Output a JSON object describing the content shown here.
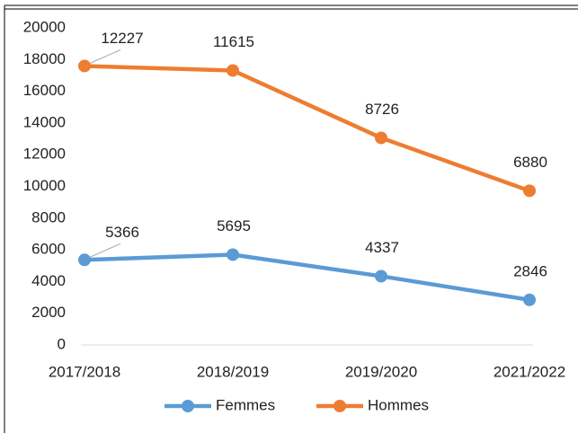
{
  "chart_data": {
    "type": "line",
    "stacked": true,
    "categories": [
      "2017/2018",
      "2018/2019",
      "2019/2020",
      "2021/2022"
    ],
    "series": [
      {
        "name": "Femmes",
        "color": "#5b9bd5",
        "values": [
          5366,
          5695,
          4337,
          2846
        ]
      },
      {
        "name": "Hommes",
        "color": "#ed7d31",
        "values": [
          12227,
          11615,
          8726,
          6880
        ]
      }
    ],
    "ylim": [
      0,
      20000
    ],
    "yticks": [
      0,
      2000,
      4000,
      6000,
      8000,
      10000,
      12000,
      14000,
      16000,
      18000,
      20000
    ],
    "grid": false,
    "legend": "bottom"
  }
}
